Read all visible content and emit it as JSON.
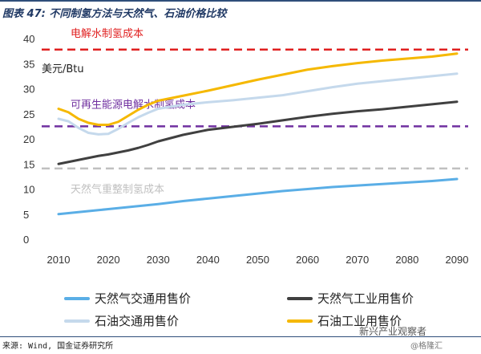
{
  "header": {
    "title": "图表 47: 不同制氢方法与天然气、石油价格比较"
  },
  "footer": {
    "source": "来源: Wind, 国金证券研究所"
  },
  "watermark": {
    "text": "新兴产业观察者",
    "sub": "@格隆汇"
  },
  "colors": {
    "ng_transport": "#5aaee6",
    "ng_industrial": "#404040",
    "oil_transport": "#c5d9ec",
    "oil_industrial": "#f5b800",
    "electrolysis": "#e02020",
    "renewable": "#7030a0",
    "reforming": "#c0c0c0"
  },
  "chart_data": {
    "type": "line",
    "x": [
      2010,
      2012,
      2014,
      2016,
      2018,
      2020,
      2022,
      2024,
      2026,
      2028,
      2030,
      2035,
      2040,
      2045,
      2050,
      2055,
      2060,
      2065,
      2070,
      2075,
      2080,
      2085,
      2090
    ],
    "xticks": [
      2010,
      2020,
      2030,
      2040,
      2050,
      2060,
      2070,
      2080,
      2090
    ],
    "ylim": [
      0,
      40
    ],
    "yticks": [
      0,
      5,
      10,
      15,
      20,
      25,
      30,
      35,
      40
    ],
    "unit_label": "美元/Btu",
    "grid": false,
    "series": [
      {
        "name": "天然气交通用售价",
        "color_key": "ng_transport",
        "values": [
          5.0,
          5.2,
          5.4,
          5.6,
          5.8,
          6.0,
          6.2,
          6.4,
          6.6,
          6.8,
          7.0,
          7.6,
          8.1,
          8.6,
          9.1,
          9.6,
          10.0,
          10.4,
          10.7,
          11.0,
          11.3,
          11.6,
          12.0
        ]
      },
      {
        "name": "天然气工业用售价",
        "color_key": "ng_industrial",
        "values": [
          15.0,
          15.4,
          15.8,
          16.2,
          16.6,
          16.9,
          17.3,
          17.7,
          18.2,
          18.8,
          19.5,
          20.8,
          21.8,
          22.4,
          23.0,
          23.7,
          24.4,
          25.0,
          25.5,
          25.9,
          26.4,
          26.9,
          27.4
        ]
      },
      {
        "name": "石油交通用售价",
        "color_key": "oil_transport",
        "values": [
          24.0,
          23.5,
          22.2,
          21.2,
          20.9,
          21.0,
          22.0,
          23.2,
          24.3,
          25.2,
          26.0,
          26.8,
          27.3,
          27.7,
          28.2,
          28.7,
          29.5,
          30.3,
          31.0,
          31.5,
          32.0,
          32.5,
          33.0
        ]
      },
      {
        "name": "石油工业用售价",
        "color_key": "oil_industrial",
        "values": [
          26.0,
          25.3,
          24.0,
          23.2,
          22.8,
          22.8,
          23.4,
          24.6,
          25.8,
          26.8,
          27.6,
          28.6,
          29.6,
          30.7,
          31.8,
          32.8,
          33.8,
          34.5,
          35.1,
          35.6,
          36.0,
          36.4,
          37.0
        ]
      }
    ],
    "reference_lines": [
      {
        "label": "电解水制氢成本",
        "value": 37.8,
        "color_key": "electrolysis"
      },
      {
        "label": "可再生能源电解水制氢成本",
        "value": 22.5,
        "color_key": "renewable"
      },
      {
        "label": "天然气重整制氢成本",
        "value": 14.1,
        "color_key": "reforming"
      }
    ]
  }
}
